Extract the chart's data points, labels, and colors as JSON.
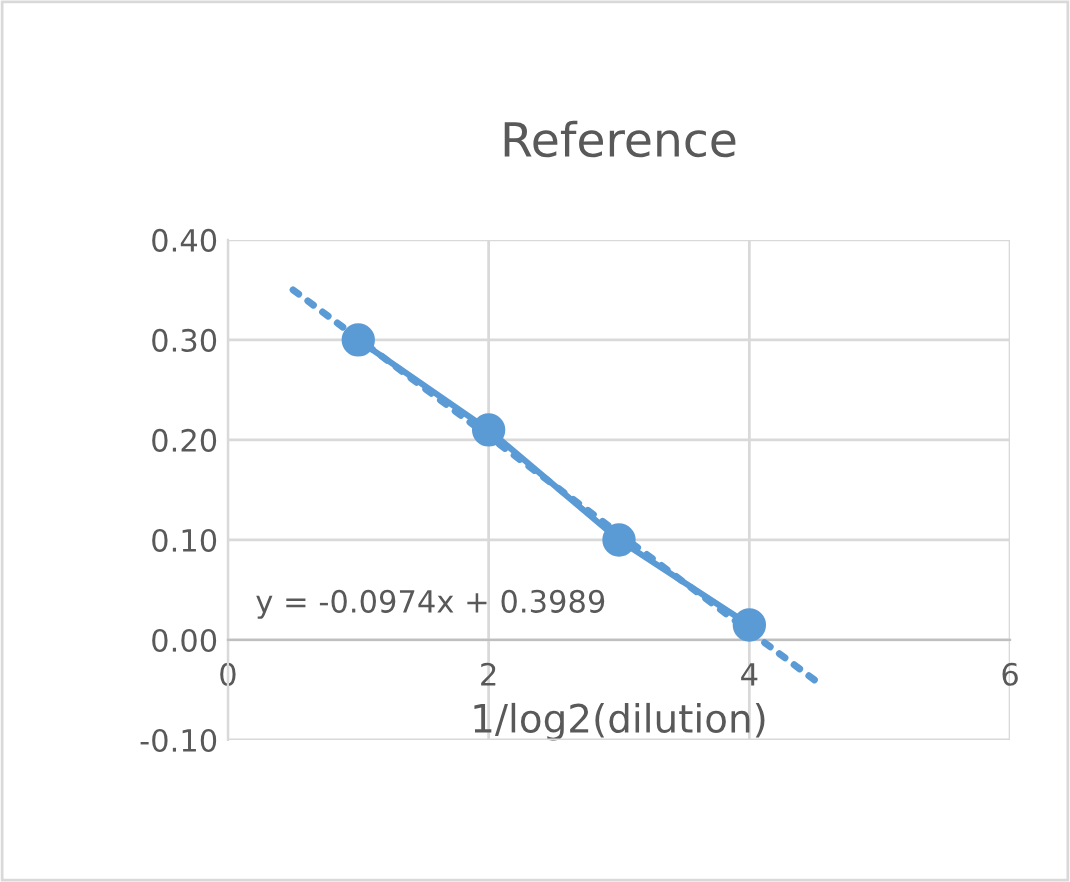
{
  "chart_data": {
    "type": "line",
    "title": "Reference",
    "xlabel": "1/log2(dilution)",
    "x": [
      1,
      2,
      3,
      4
    ],
    "series": [
      {
        "color": "#5b9bd5",
        "values": [
          0.3,
          0.21,
          0.1,
          0.015
        ],
        "marker": "circle",
        "line_style": "solid"
      },
      {
        "type": "line",
        "color": "#5b9bd5",
        "x": [
          0.5,
          4.5
        ],
        "values": [
          0.35,
          -0.04
        ],
        "marker": "none",
        "line_style": "dotted"
      }
    ],
    "annotations": [
      "y = -0.0974x + 0.3989"
    ],
    "xlim": [
      0,
      6
    ],
    "xticks": [
      0,
      2,
      4,
      6
    ],
    "ylim": [
      -0.1,
      0.4
    ],
    "yticks": [
      {
        "value": -0.1,
        "label": "-0.10"
      },
      {
        "value": 0.0,
        "label": "0.00"
      },
      {
        "value": 0.1,
        "label": "0.10"
      },
      {
        "value": 0.2,
        "label": "0.20"
      },
      {
        "value": 0.3,
        "label": "0.30"
      },
      {
        "value": 0.4,
        "label": "0.40"
      }
    ],
    "grid": true,
    "legend": false
  }
}
